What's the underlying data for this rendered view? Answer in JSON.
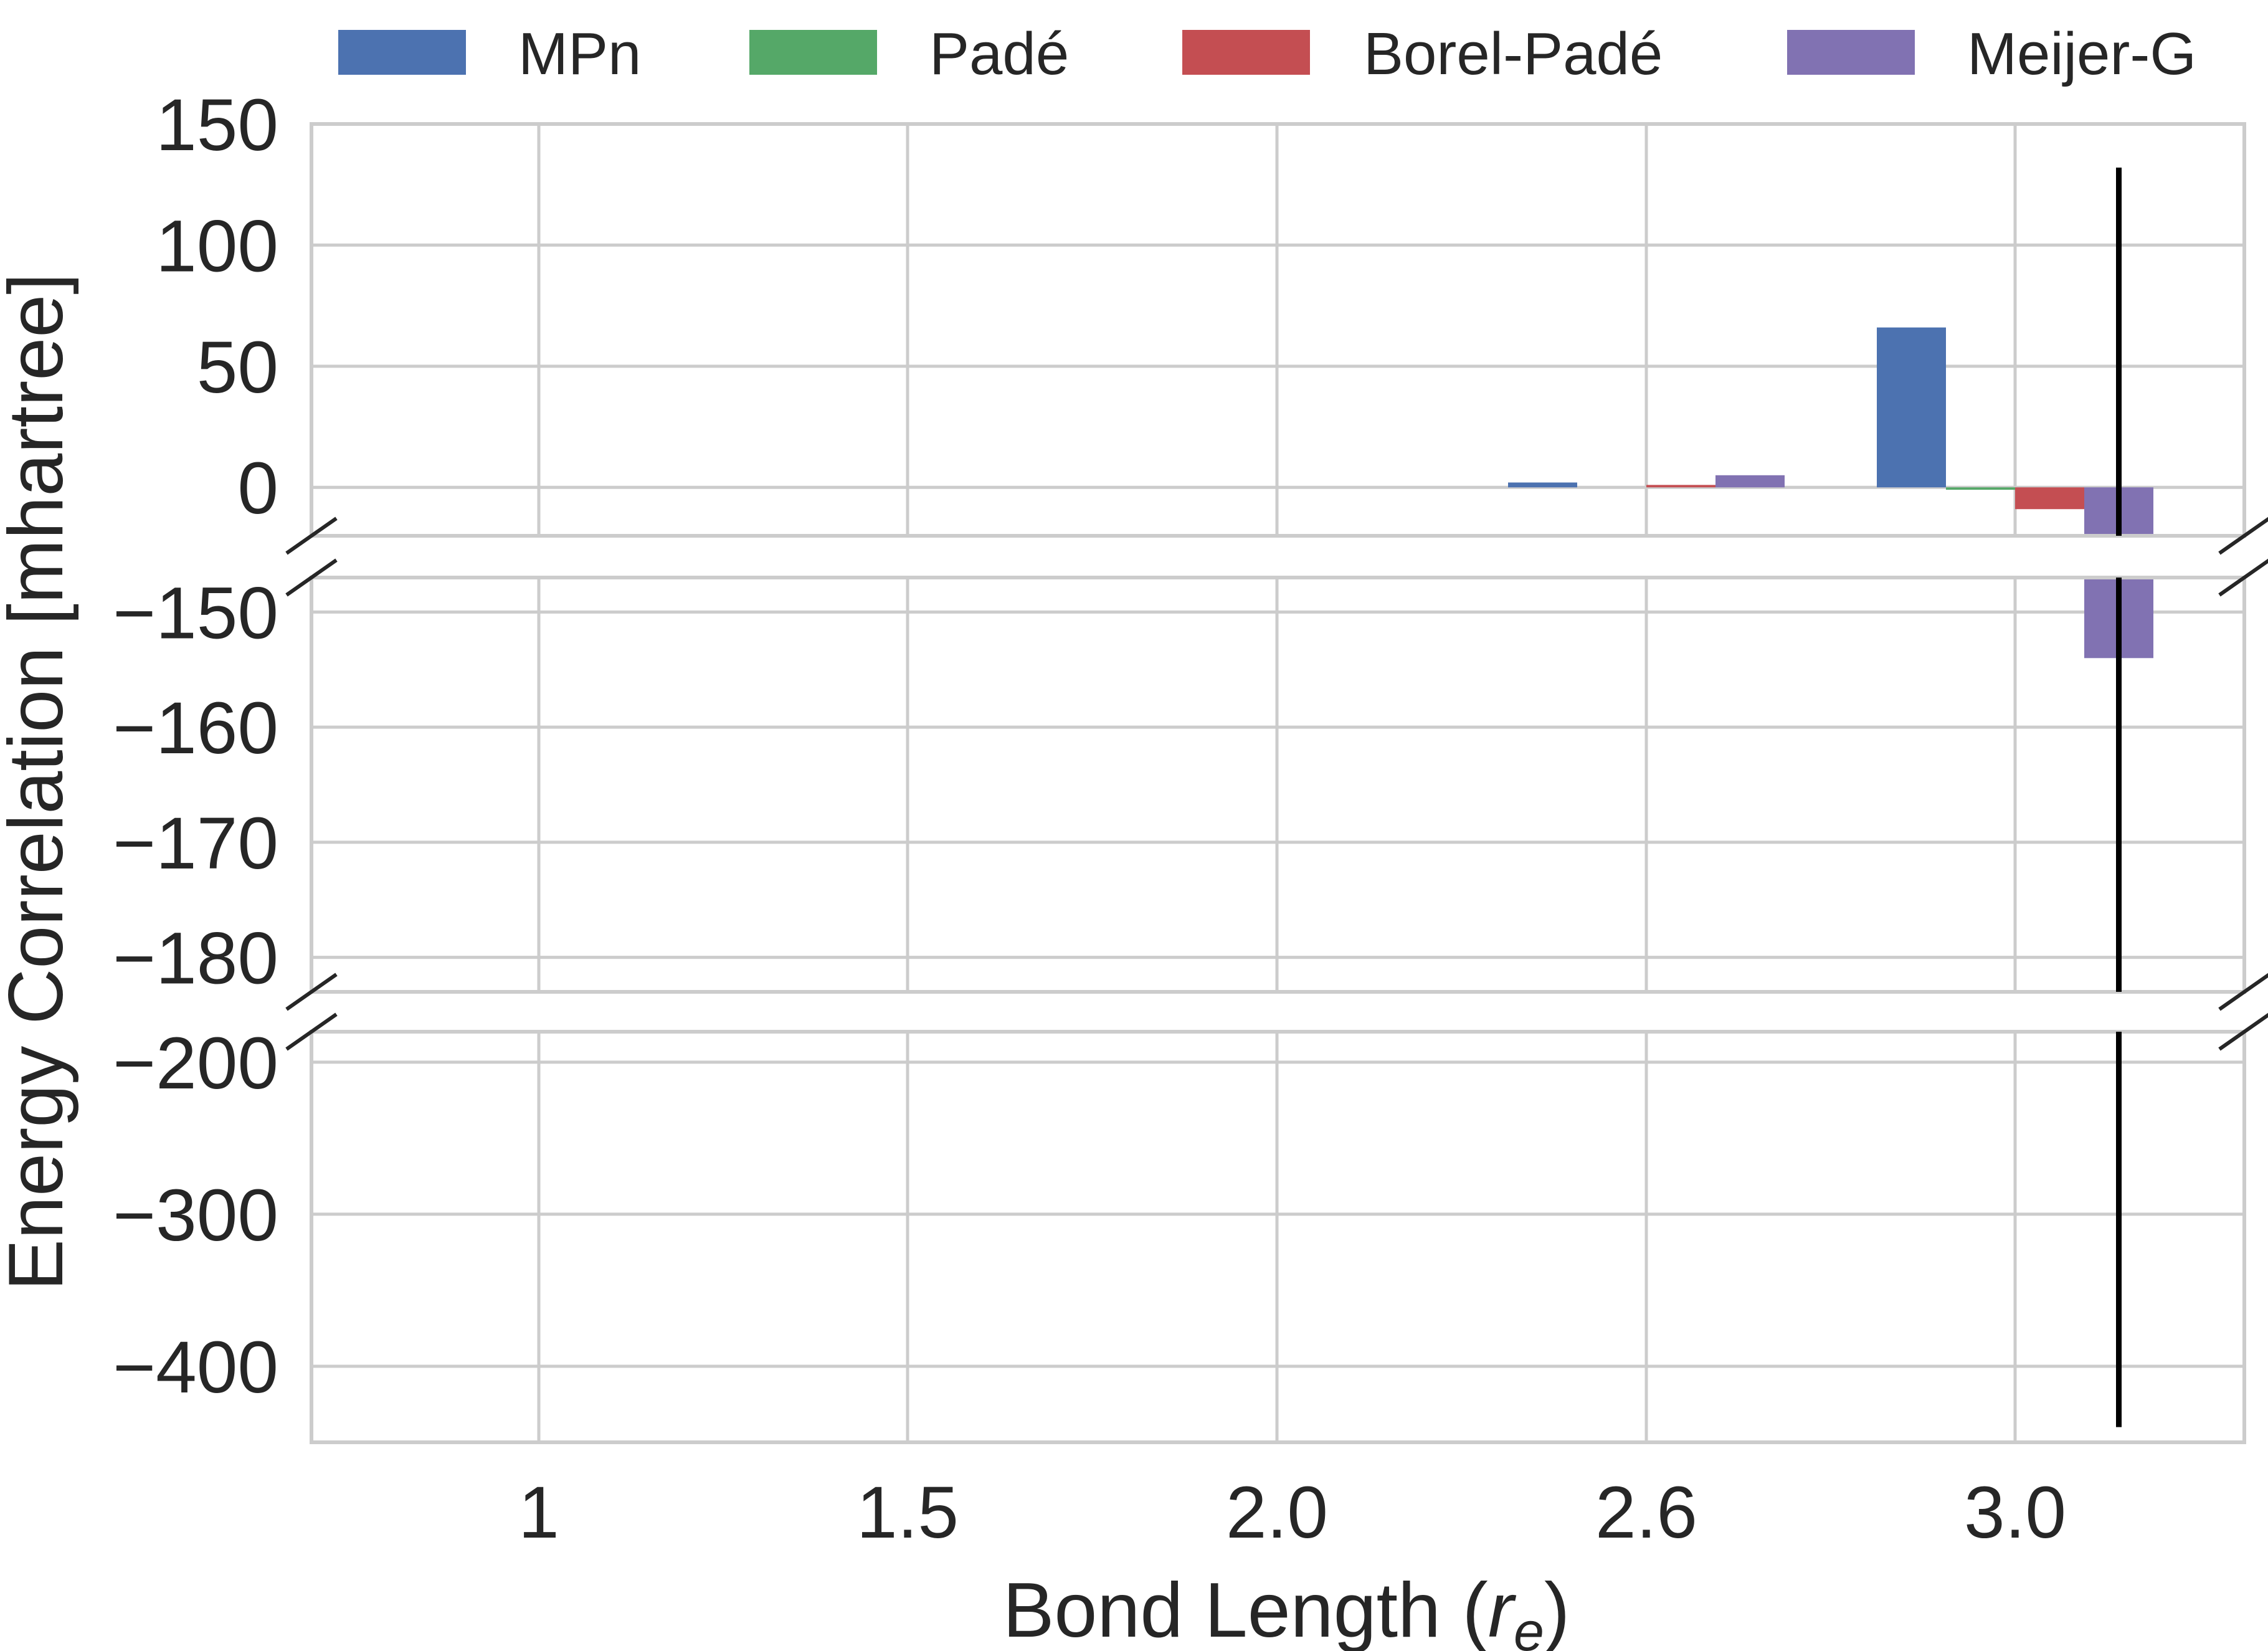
{
  "chart_data": {
    "type": "bar",
    "xlabel": "Bond Length (",
    "xlabel_symbol": "r",
    "xlabel_subscript": "e",
    "xlabel_suffix": ")",
    "ylabel": "Energy Correlation [mhartree]",
    "categories": [
      "1",
      "1.5",
      "2.0",
      "2.6",
      "3.0"
    ],
    "series": [
      {
        "name": "MPn",
        "color": "#4c72b0",
        "values": [
          0,
          0,
          0,
          2,
          66
        ]
      },
      {
        "name": "Padé",
        "color": "#55a868",
        "values": [
          0,
          0,
          0,
          0,
          -1
        ]
      },
      {
        "name": "Borel-Padé",
        "color": "#c44e52",
        "values": [
          0,
          0,
          0,
          1,
          -9
        ]
      },
      {
        "name": "Meijer-G",
        "color": "#8172b2",
        "values": [
          0,
          0,
          0,
          5,
          -154
        ]
      }
    ],
    "error_bars": [
      {
        "series": "Meijer-G",
        "category": "3.0",
        "low": -440,
        "high": 132,
        "color": "#000000"
      }
    ],
    "y_axis_broken": true,
    "y_segments": [
      {
        "ylim": [
          -20,
          150
        ],
        "yticks": [
          "150",
          "100",
          "50",
          "0"
        ],
        "ytick_values": [
          150,
          100,
          50,
          0
        ]
      },
      {
        "ylim": [
          -183,
          -147
        ],
        "yticks": [
          "−150",
          "−160",
          "−170",
          "−180"
        ],
        "ytick_values": [
          -150,
          -160,
          -170,
          -180
        ]
      },
      {
        "ylim": [
          -450,
          -180
        ],
        "yticks": [
          "−200",
          "−300",
          "−400"
        ],
        "ytick_values": [
          -200,
          -300,
          -400
        ]
      }
    ],
    "legend_position": "top",
    "grid": true
  }
}
